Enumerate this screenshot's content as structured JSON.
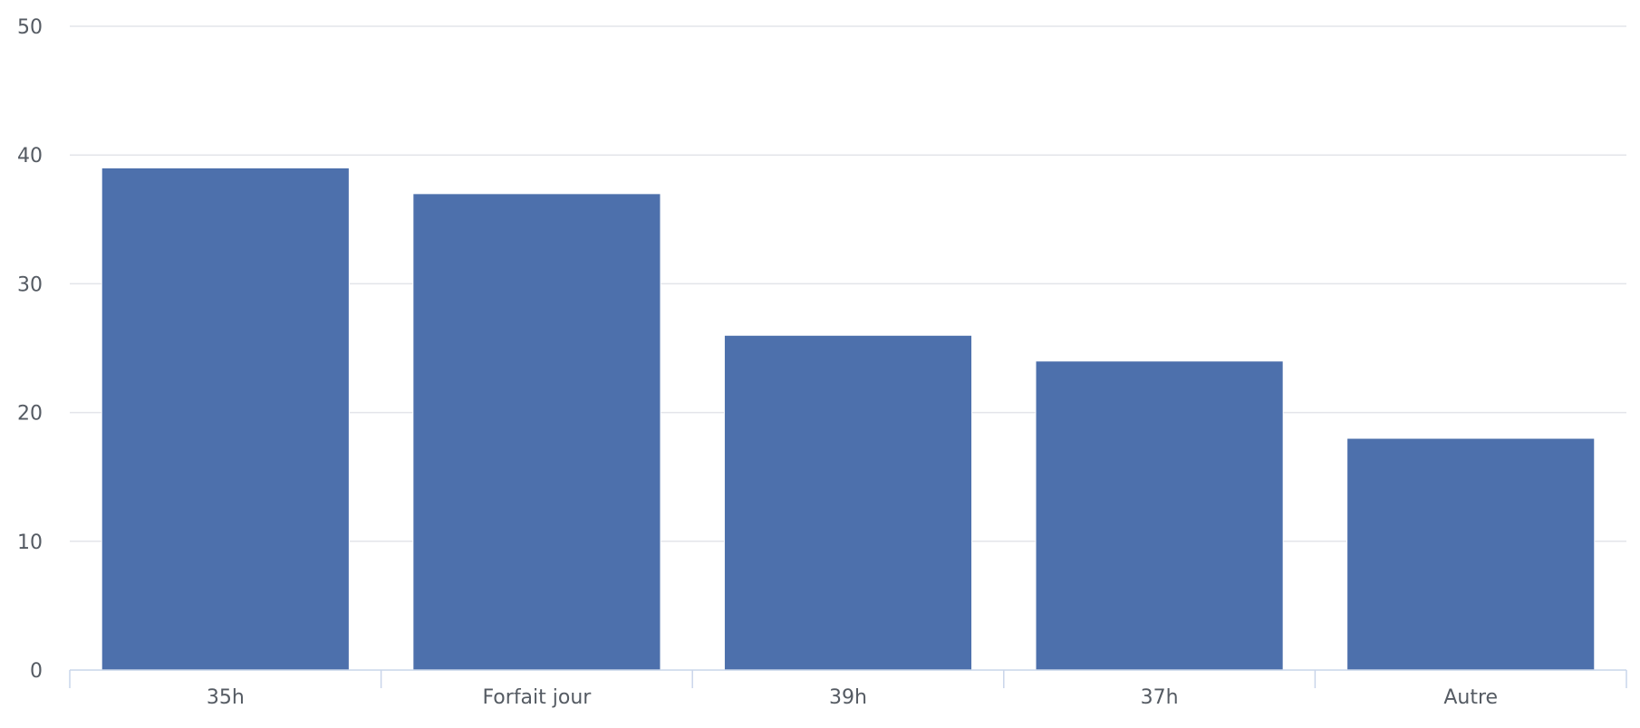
{
  "chart_data": {
    "type": "bar",
    "categories": [
      "35h",
      "Forfait jour",
      "39h",
      "37h",
      "Autre"
    ],
    "values": [
      39,
      37,
      26,
      24,
      18
    ],
    "title": "",
    "xlabel": "",
    "ylabel": "",
    "ylim": [
      0,
      50
    ],
    "yticks": [
      0,
      10,
      20,
      30,
      40,
      50
    ],
    "grid": true,
    "legend": "none",
    "colors": {
      "bar": "#4d70ac",
      "grid": "#e3e5ea",
      "axis": "#c9d5ea",
      "tick_text": "#555b63"
    }
  }
}
